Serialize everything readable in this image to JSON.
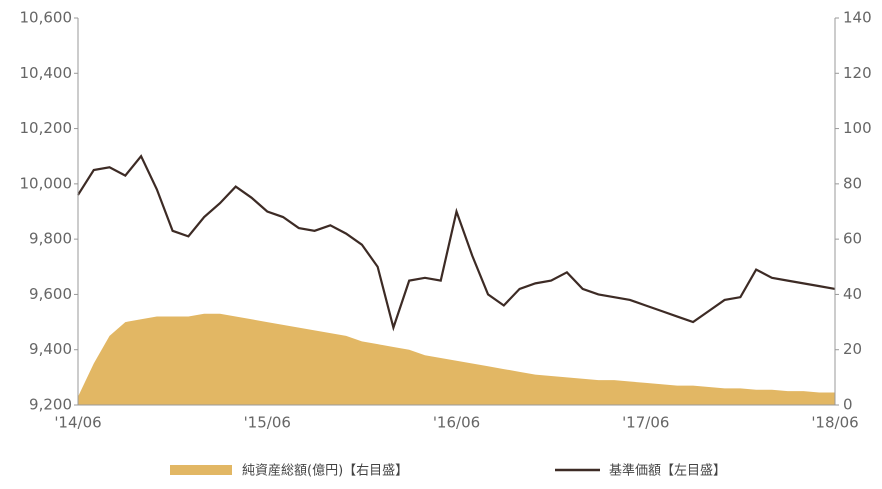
{
  "chart_data": {
    "type": "line",
    "categories": [
      "'14/06",
      null,
      null,
      null,
      null,
      null,
      null,
      null,
      null,
      null,
      null,
      null,
      "'15/06",
      null,
      null,
      null,
      null,
      null,
      null,
      null,
      null,
      null,
      null,
      null,
      "'16/06",
      null,
      null,
      null,
      null,
      null,
      null,
      null,
      null,
      null,
      null,
      null,
      "'17/06",
      null,
      null,
      null,
      null,
      null,
      null,
      null,
      null,
      null,
      null,
      null,
      "'18/06"
    ],
    "series": [
      {
        "name": "純資産総額(億円)【右目盛】",
        "type": "area",
        "axis": "y2",
        "color": "#e2b764",
        "values": [
          3,
          15,
          25,
          30,
          31,
          32,
          32,
          32,
          33,
          33,
          32,
          31,
          30,
          29,
          28,
          27,
          26,
          25,
          23,
          22,
          21,
          20,
          18,
          17,
          16,
          15,
          14,
          13,
          12,
          11,
          10.5,
          10,
          9.5,
          9,
          9,
          8.5,
          8,
          7.5,
          7,
          7,
          6.5,
          6,
          6,
          5.5,
          5.5,
          5,
          5,
          4.5,
          4.5
        ]
      },
      {
        "name": "基準価額【左目盛】",
        "type": "line",
        "axis": "y",
        "color": "#3d2b25",
        "values": [
          9960,
          10050,
          10060,
          10030,
          10100,
          9980,
          9830,
          9810,
          9880,
          9930,
          9990,
          9950,
          9900,
          9880,
          9840,
          9830,
          9850,
          9820,
          9780,
          9700,
          9480,
          9650,
          9660,
          9650,
          9900,
          9740,
          9600,
          9560,
          9620,
          9640,
          9650,
          9680,
          9620,
          9600,
          9590,
          9580,
          9560,
          9540,
          9520,
          9500,
          9540,
          9580,
          9590,
          9690,
          9660,
          9650,
          9640,
          9630,
          9620
        ]
      }
    ],
    "ylim": [
      9200,
      10600
    ],
    "yticks": [
      {
        "value": 9200,
        "label": "9,200"
      },
      {
        "value": 9400,
        "label": "9,400"
      },
      {
        "value": 9600,
        "label": "9,600"
      },
      {
        "value": 9800,
        "label": "9,800"
      },
      {
        "value": 10000,
        "label": "10,000"
      },
      {
        "value": 10200,
        "label": "10,200"
      },
      {
        "value": 10400,
        "label": "10,400"
      },
      {
        "value": 10600,
        "label": "10,600"
      }
    ],
    "y2lim": [
      0,
      140
    ],
    "y2ticks": [
      0,
      20,
      40,
      60,
      80,
      100,
      120,
      140
    ]
  }
}
